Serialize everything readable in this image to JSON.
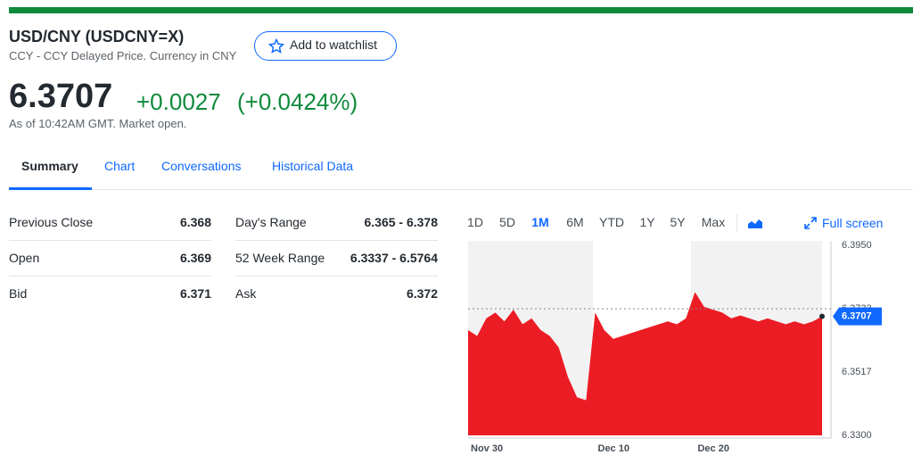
{
  "header": {
    "title": "USD/CNY (USDCNY=X)",
    "subtitle": "CCY - CCY Delayed Price. Currency in CNY",
    "watchlist": "Add to watchlist"
  },
  "quote": {
    "price": "6.3707",
    "change": "+0.0027",
    "change_percent": "(+0.0424%)",
    "as_of": "As of 10:42AM GMT. Market open."
  },
  "tabs": [
    "Summary",
    "Chart",
    "Conversations",
    "Historical Data"
  ],
  "stats": {
    "rows": [
      [
        "Previous Close",
        "6.368",
        "Day's Range",
        "6.365 - 6.378"
      ],
      [
        "Open",
        "6.369",
        "52 Week Range",
        "6.3337 - 6.5764"
      ],
      [
        "Bid",
        "6.371",
        "Ask",
        "6.372"
      ]
    ]
  },
  "ranges": [
    "1D",
    "5D",
    "1M",
    "6M",
    "YTD",
    "1Y",
    "5Y",
    "Max"
  ],
  "full_screen": "Full screen",
  "chart_data": {
    "type": "area",
    "color": "#ec1c24",
    "categories": [
      "Nov 30",
      null,
      null,
      null,
      null,
      null,
      null,
      null,
      null,
      null,
      null,
      null,
      null,
      null,
      "Dec 10",
      null,
      null,
      null,
      null,
      null,
      null,
      null,
      null,
      null,
      null,
      "Dec 20",
      null,
      null,
      null,
      null,
      null,
      null,
      null,
      null,
      null,
      null,
      null,
      null,
      null,
      null
    ],
    "values": [
      6.366,
      6.364,
      6.37,
      6.372,
      6.369,
      6.373,
      6.368,
      6.37,
      6.366,
      6.364,
      6.36,
      6.35,
      6.343,
      6.342,
      6.372,
      6.366,
      6.363,
      6.364,
      6.365,
      6.366,
      6.367,
      6.368,
      6.369,
      6.368,
      6.37,
      6.379,
      6.374,
      6.373,
      6.372,
      6.37,
      6.371,
      6.37,
      6.369,
      6.37,
      6.369,
      6.368,
      6.369,
      6.368,
      6.369,
      6.3707
    ],
    "ylim": [
      6.33,
      6.395
    ],
    "yticks": [
      {
        "value": 6.33,
        "label": "6.3300"
      },
      {
        "value": 6.3517,
        "label": "6.3517"
      },
      {
        "value": 6.3733,
        "label": "6.3733"
      },
      {
        "value": 6.395,
        "label": "6.3950"
      }
    ],
    "price_tag": 6.3707
  }
}
